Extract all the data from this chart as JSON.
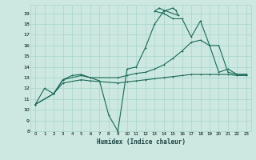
{
  "xlabel": "Humidex (Indice chaleur)",
  "bg_color": "#cce8e0",
  "grid_color": "#a8d4cc",
  "line_color": "#1a6858",
  "xlim": [
    -0.5,
    23.5
  ],
  "ylim": [
    8,
    19.8
  ],
  "yticks": [
    8,
    9,
    10,
    11,
    12,
    13,
    14,
    15,
    16,
    17,
    18,
    19
  ],
  "xticks": [
    0,
    1,
    2,
    3,
    4,
    5,
    6,
    7,
    8,
    9,
    10,
    11,
    12,
    13,
    14,
    15,
    16,
    17,
    18,
    19,
    20,
    21,
    22,
    23
  ],
  "curve1_x": [
    0,
    1,
    2,
    3,
    4,
    5,
    6,
    7,
    8,
    9,
    10,
    11,
    12,
    13,
    14,
    15,
    15.3,
    15.6,
    14,
    13.5,
    13,
    14,
    15,
    16,
    17,
    18,
    19,
    20,
    21,
    22,
    23
  ],
  "curve1_y": [
    10.5,
    12.0,
    11.5,
    12.8,
    13.2,
    13.3,
    13.0,
    12.7,
    9.5,
    8.0,
    13.8,
    14.0,
    15.8,
    18.0,
    19.2,
    19.5,
    19.3,
    18.8,
    19.3,
    19.5,
    19.2,
    19.0,
    18.5,
    18.5,
    16.8,
    18.3,
    16.0,
    16.0,
    13.5,
    13.3,
    13.3
  ],
  "curve2_x": [
    0,
    2,
    3,
    5,
    6,
    9,
    10,
    11,
    12,
    13,
    14,
    15,
    16,
    17,
    18,
    19,
    20,
    21,
    22,
    23
  ],
  "curve2_y": [
    10.5,
    11.5,
    12.8,
    13.2,
    13.0,
    13.0,
    13.2,
    13.4,
    13.5,
    13.8,
    14.2,
    14.8,
    15.5,
    16.3,
    16.5,
    16.0,
    13.5,
    13.8,
    13.3,
    13.3
  ],
  "curve3_x": [
    0,
    2,
    3,
    5,
    6,
    9,
    10,
    11,
    12,
    13,
    14,
    15,
    16,
    17,
    18,
    19,
    20,
    21,
    22,
    23
  ],
  "curve3_y": [
    10.5,
    11.5,
    12.5,
    12.8,
    12.7,
    12.5,
    12.6,
    12.7,
    12.8,
    12.9,
    13.0,
    13.1,
    13.2,
    13.3,
    13.3,
    13.3,
    13.3,
    13.3,
    13.2,
    13.2
  ]
}
